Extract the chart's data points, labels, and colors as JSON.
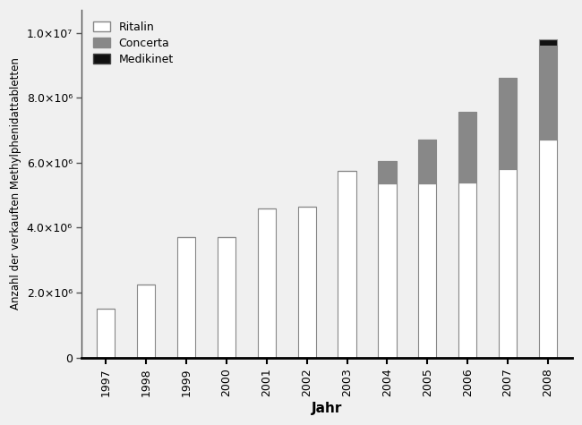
{
  "years": [
    "1997",
    "1998",
    "1999",
    "2000",
    "2001",
    "2002",
    "2003",
    "2004",
    "2005",
    "2006",
    "2007",
    "2008"
  ],
  "ritalin": [
    1500000,
    2250000,
    3700000,
    3700000,
    4600000,
    4650000,
    5750000,
    5350000,
    5350000,
    5400000,
    5800000,
    6700000
  ],
  "concerta": [
    0,
    0,
    0,
    0,
    0,
    0,
    0,
    700000,
    1350000,
    2150000,
    2800000,
    2900000
  ],
  "medikinet": [
    0,
    0,
    0,
    0,
    0,
    0,
    0,
    0,
    0,
    0,
    0,
    200000
  ],
  "ritalin_color": "#ffffff",
  "concerta_color": "#888888",
  "medikinet_color": "#111111",
  "bar_edge_color": "#888888",
  "xlabel": "Jahr",
  "ylabel": "Anzahl der verkauften Methylphenidattabletten",
  "ylim": [
    0,
    10700000
  ],
  "yticks": [
    0,
    2000000,
    4000000,
    6000000,
    8000000,
    10000000
  ],
  "ytick_labels": [
    "0",
    "2.0×10⁶",
    "4.0×10⁶",
    "6.0×10⁶",
    "8.0×10⁶",
    "1.0×10⁷"
  ],
  "legend_labels": [
    "Ritalin",
    "Concerta",
    "Medikinet"
  ],
  "bar_width": 0.45,
  "figsize": [
    6.5,
    4.75
  ],
  "dpi": 100,
  "bg_color": "#f0f0f0"
}
